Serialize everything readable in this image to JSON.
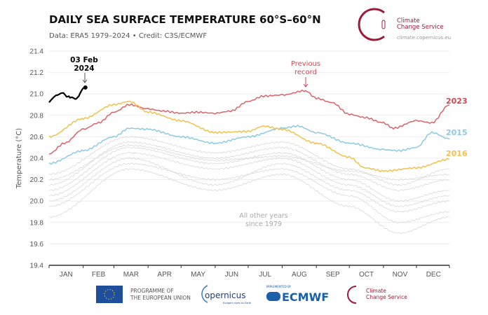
{
  "header": {
    "title": "DAILY SEA SURFACE TEMPERATURE 60°S–60°N",
    "subtitle": "Data: ERA5 1979–2024 • Credit: C3S/ECMWF",
    "logo_text_1": "Climate",
    "logo_text_2": "Change Service",
    "logo_url": "climate.copernicus.eu"
  },
  "footer": {
    "eu_1": "PROGRAMME OF",
    "eu_2": "THE EUROPEAN UNION",
    "copernicus": "opernicus",
    "copernicus_tag": "Europe's eyes on Earth",
    "implemented_by": "IMPLEMENTED BY",
    "ecmwf": "ECMWF",
    "c3s_1": "Climate",
    "c3s_2": "Change Service"
  },
  "colors": {
    "2023": "#d9636b",
    "2015": "#8ec9e6",
    "2016": "#f2c14e",
    "2024": "#000000",
    "other": "#d8d8d8",
    "brand": "#9b1b3a"
  },
  "chart_data": {
    "type": "line",
    "title": "DAILY SEA SURFACE TEMPERATURE 60°S–60°N",
    "ylabel": "Temperature (°C)",
    "xlabel": "",
    "ylim": [
      19.4,
      21.4
    ],
    "yticks": [
      "19.4",
      "19.6",
      "19.8",
      "20.0",
      "20.2",
      "20.4",
      "20.6",
      "20.8",
      "21.0",
      "21.2",
      "21.4"
    ],
    "xticks": [
      "JAN",
      "FEB",
      "MAR",
      "APR",
      "MAY",
      "JUN",
      "JUL",
      "AUG",
      "SEP",
      "OCT",
      "NOV",
      "DEC"
    ],
    "grid": true,
    "annotations": {
      "latest": [
        "03 Feb",
        "2024"
      ],
      "previous_record": [
        "Previous",
        "record"
      ],
      "others": [
        "All other years",
        "since 1979"
      ]
    },
    "series": [
      {
        "name": "2023",
        "x": [
          "01-01",
          "01-15",
          "02-01",
          "02-15",
          "03-01",
          "03-15",
          "04-01",
          "04-15",
          "05-01",
          "05-15",
          "06-01",
          "06-15",
          "07-01",
          "07-15",
          "08-01",
          "08-22",
          "09-01",
          "09-15",
          "10-01",
          "10-15",
          "11-01",
          "11-10",
          "12-01",
          "12-15",
          "12-31"
        ],
        "y": [
          20.44,
          20.54,
          20.67,
          20.73,
          20.83,
          20.9,
          20.86,
          20.84,
          20.82,
          20.83,
          20.82,
          20.84,
          20.93,
          20.98,
          20.99,
          21.03,
          20.96,
          20.92,
          20.81,
          20.78,
          20.73,
          20.68,
          20.75,
          20.73,
          20.9
        ]
      },
      {
        "name": "2015",
        "x": [
          "01-01",
          "02-01",
          "03-01",
          "03-15",
          "04-01",
          "05-01",
          "06-01",
          "07-01",
          "08-01",
          "08-15",
          "09-01",
          "10-01",
          "11-01",
          "11-15",
          "12-01",
          "12-15",
          "12-31"
        ],
        "y": [
          20.35,
          20.47,
          20.6,
          20.68,
          20.67,
          20.6,
          20.54,
          20.6,
          20.68,
          20.7,
          20.64,
          20.54,
          20.48,
          20.47,
          20.5,
          20.64,
          20.58
        ]
      },
      {
        "name": "2016",
        "x": [
          "01-01",
          "02-01",
          "03-01",
          "03-15",
          "04-01",
          "05-01",
          "06-01",
          "07-01",
          "07-15",
          "08-01",
          "09-01",
          "10-01",
          "10-15",
          "11-01",
          "12-01",
          "12-31"
        ],
        "y": [
          20.6,
          20.77,
          20.9,
          20.93,
          20.83,
          20.75,
          20.64,
          20.65,
          20.7,
          20.67,
          20.54,
          20.41,
          20.31,
          20.28,
          20.31,
          20.39
        ]
      },
      {
        "name": "2024",
        "x": [
          "01-01",
          "01-05",
          "01-10",
          "01-14",
          "01-17",
          "01-20",
          "01-23",
          "01-26",
          "01-29",
          "02-01",
          "02-03"
        ],
        "y": [
          20.92,
          20.97,
          21.0,
          21.01,
          20.98,
          20.97,
          20.96,
          20.95,
          21.0,
          21.06,
          21.06
        ]
      },
      {
        "x": [
          "01-01",
          "03-15",
          "06-01",
          "08-01",
          "10-01",
          "11-15",
          "12-31"
        ],
        "y": [
          20.05,
          20.45,
          20.3,
          20.4,
          20.15,
          19.95,
          20.05
        ]
      },
      {
        "x": [
          "01-01",
          "03-15",
          "06-01",
          "08-01",
          "10-01",
          "11-15",
          "12-31"
        ],
        "y": [
          20.15,
          20.55,
          20.4,
          20.5,
          20.25,
          20.1,
          20.2
        ]
      },
      {
        "x": [
          "01-01",
          "03-15",
          "06-01",
          "08-01",
          "10-01",
          "11-15",
          "12-31"
        ],
        "y": [
          19.95,
          20.35,
          20.2,
          20.3,
          20.05,
          19.8,
          19.9
        ]
      },
      {
        "x": [
          "01-01",
          "03-15",
          "06-01",
          "08-01",
          "10-01",
          "11-15",
          "12-31"
        ],
        "y": [
          20.25,
          20.6,
          20.45,
          20.55,
          20.3,
          20.15,
          20.3
        ]
      },
      {
        "x": [
          "01-01",
          "03-15",
          "06-01",
          "08-01",
          "10-01",
          "11-15",
          "12-31"
        ],
        "y": [
          19.85,
          20.3,
          20.1,
          20.25,
          19.95,
          19.7,
          19.85
        ]
      },
      {
        "x": [
          "01-01",
          "03-15",
          "06-01",
          "08-01",
          "10-01",
          "11-15",
          "12-31"
        ],
        "y": [
          20.0,
          20.4,
          20.15,
          20.35,
          20.1,
          19.9,
          20.0
        ]
      },
      {
        "x": [
          "01-01",
          "03-15",
          "06-01",
          "08-01",
          "10-01",
          "11-15",
          "12-31"
        ],
        "y": [
          20.1,
          20.5,
          20.35,
          20.45,
          20.2,
          20.0,
          20.1
        ]
      },
      {
        "x": [
          "01-01",
          "03-15",
          "06-01",
          "08-01",
          "10-01",
          "11-15",
          "12-31"
        ],
        "y": [
          20.2,
          20.52,
          20.38,
          20.42,
          20.28,
          20.2,
          20.25
        ]
      }
    ]
  }
}
